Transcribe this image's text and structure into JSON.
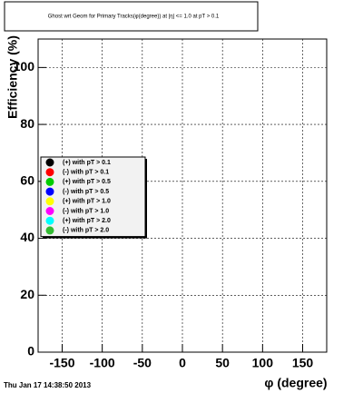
{
  "chart_data": {
    "type": "line",
    "title": "Ghost wrt Geom for Primary Tracks(φ(degree)) at |η| <= 1.0 at pT > 0.1",
    "x_label": "φ (degree)",
    "y_label": "Efficiency (%)",
    "timestamp": "Thu Jan 17 14:38:50 2013",
    "xlim": [
      -180,
      180
    ],
    "xticks": [
      -150,
      -100,
      -50,
      0,
      50,
      100,
      150
    ],
    "ylim": [
      0,
      110
    ],
    "yticks": [
      0,
      20,
      40,
      60,
      80,
      100
    ],
    "grid": true,
    "legend": "left",
    "series": [
      {
        "name": "(+) with pT > 0.1",
        "color": "#000000"
      },
      {
        "name": "(-) with pT > 0.1",
        "color": "#ff0000"
      },
      {
        "name": "(+) with pT > 0.5",
        "color": "#00cc00"
      },
      {
        "name": "(-) with pT > 0.5",
        "color": "#0000ff"
      },
      {
        "name": "(+) with pT > 1.0",
        "color": "#ffff00"
      },
      {
        "name": "(-) with pT > 1.0",
        "color": "#ff00ff"
      },
      {
        "name": "(+) with pT > 2.0",
        "color": "#00ffff"
      },
      {
        "name": "(-) with pT > 2.0",
        "color": "#33bb33"
      }
    ]
  }
}
